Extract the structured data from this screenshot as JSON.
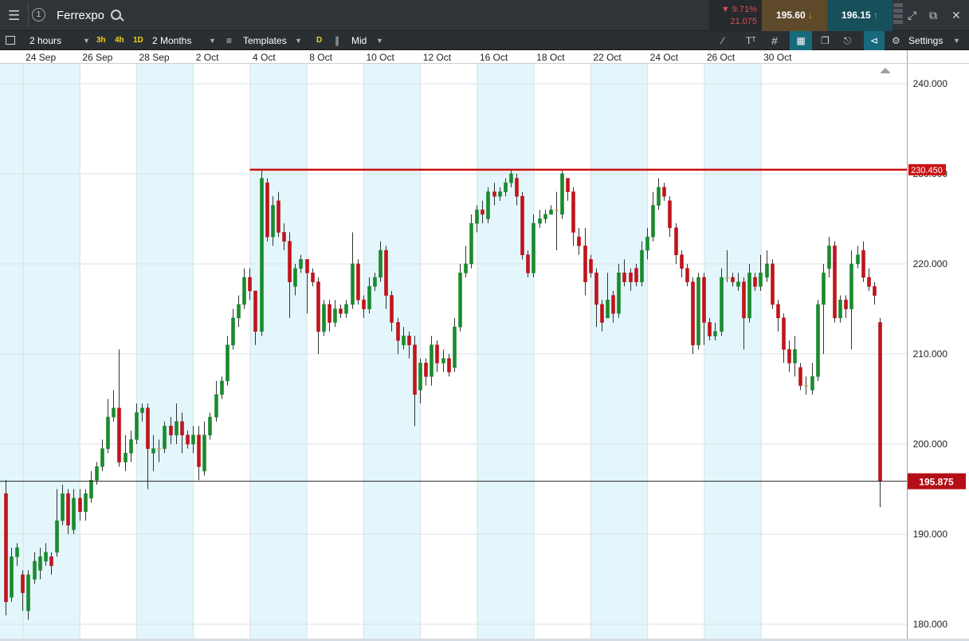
{
  "window": {
    "instrument": "Ferrexpo",
    "badge": "1",
    "change_pct": "▼ 9.71%",
    "change_abs": "21.075",
    "sell_price": "195.60",
    "buy_price": "196.15"
  },
  "toolbar": {
    "interval": "2 hours",
    "quick_intervals": [
      "3h",
      "4h",
      "1D"
    ],
    "range": "2 Months",
    "templates": "Templates",
    "d_badge": "D",
    "price_type": "Mid",
    "settings": "Settings"
  },
  "colors": {
    "up": "#1a8a2e",
    "down": "#c0141c",
    "neutral": "#c8a24a",
    "resistance": "#cc1111",
    "band": "#e2f6fb"
  },
  "chart_data": {
    "type": "candlestick",
    "x_tick_labels": [
      "24 Sep",
      "26 Sep",
      "28 Sep",
      "2 Oct",
      "4 Oct",
      "8 Oct",
      "10 Oct",
      "12 Oct",
      "16 Oct",
      "18 Oct",
      "22 Oct",
      "24 Oct",
      "26 Oct",
      "30 Oct"
    ],
    "y_tick_labels": [
      "240.000",
      "230.000",
      "220.000",
      "210.000",
      "200.000",
      "190.000",
      "180.000"
    ],
    "ylim": [
      178.5,
      241.5
    ],
    "resistance_level": 230.45,
    "resistance_label": "230.450",
    "resistance_start_index": 43,
    "current_price": 195.875,
    "current_label": "195.875",
    "candles": [
      [
        194.5,
        182.5,
        196.0,
        181.0
      ],
      [
        183.0,
        187.5,
        188.5,
        182.5
      ],
      [
        187.5,
        188.5,
        189.0,
        186.5
      ],
      [
        185.5,
        183.5,
        186.0,
        181.5
      ],
      [
        181.5,
        185.5,
        186.0,
        180.5
      ],
      [
        185.0,
        187.0,
        188.0,
        184.5
      ],
      [
        186.0,
        187.5,
        188.5,
        185.0
      ],
      [
        187.0,
        188.0,
        189.0,
        186.5
      ],
      [
        187.5,
        186.5,
        188.0,
        185.5
      ],
      [
        188.0,
        191.5,
        195.0,
        187.5
      ],
      [
        191.5,
        194.5,
        195.5,
        191.0
      ],
      [
        194.5,
        191.0,
        195.0,
        190.0
      ],
      [
        190.5,
        194.0,
        195.0,
        190.0
      ],
      [
        194.0,
        192.5,
        195.0,
        191.5
      ],
      [
        192.5,
        194.5,
        195.0,
        191.5
      ],
      [
        194.0,
        196.0,
        197.0,
        193.5
      ],
      [
        196.0,
        197.5,
        198.0,
        195.5
      ],
      [
        197.5,
        199.5,
        200.5,
        197.0
      ],
      [
        199.5,
        203.0,
        205.0,
        199.0
      ],
      [
        203.0,
        204.0,
        206.0,
        202.5
      ],
      [
        204.0,
        198.0,
        210.5,
        197.5
      ],
      [
        198.0,
        199.0,
        201.0,
        197.0
      ],
      [
        199.0,
        200.5,
        201.5,
        198.0
      ],
      [
        200.5,
        203.5,
        204.5,
        200.0
      ],
      [
        203.5,
        204.0,
        204.5,
        202.5
      ],
      [
        204.0,
        199.5,
        204.5,
        195.0
      ],
      [
        199.0,
        199.5,
        201.0,
        197.0
      ],
      [
        199.5,
        199.5,
        200.5,
        198.0
      ],
      [
        199.5,
        202.0,
        202.5,
        199.0
      ],
      [
        202.0,
        201.0,
        203.0,
        200.0
      ],
      [
        201.0,
        202.5,
        204.5,
        200.0
      ],
      [
        202.5,
        201.0,
        203.5,
        199.0
      ],
      [
        201.0,
        200.0,
        201.5,
        199.5
      ],
      [
        200.0,
        201.0,
        202.0,
        199.0
      ],
      [
        201.0,
        197.5,
        202.0,
        196.0
      ],
      [
        197.0,
        201.0,
        202.5,
        196.5
      ],
      [
        201.0,
        203.0,
        203.5,
        200.5
      ],
      [
        203.0,
        205.5,
        207.0,
        202.5
      ],
      [
        205.5,
        207.0,
        207.5,
        205.0
      ],
      [
        207.0,
        211.0,
        212.0,
        206.5
      ],
      [
        211.0,
        214.0,
        215.0,
        210.5
      ],
      [
        214.0,
        215.5,
        216.5,
        213.0
      ],
      [
        215.5,
        218.5,
        219.5,
        215.0
      ],
      [
        218.5,
        217.0,
        219.5,
        216.0
      ],
      [
        217.0,
        212.5,
        213.5,
        211.0
      ],
      [
        212.5,
        229.5,
        230.5,
        212.0
      ],
      [
        229.0,
        223.0,
        229.5,
        222.5
      ],
      [
        223.0,
        226.5,
        227.5,
        222.0
      ],
      [
        227.0,
        223.5,
        228.0,
        223.0
      ],
      [
        223.5,
        222.5,
        224.5,
        221.5
      ],
      [
        222.5,
        218.0,
        223.5,
        214.0
      ],
      [
        217.5,
        219.5,
        220.0,
        216.5
      ],
      [
        219.5,
        220.5,
        221.0,
        219.0
      ],
      [
        220.5,
        219.0,
        220.5,
        214.5
      ],
      [
        219.0,
        218.0,
        219.5,
        217.5
      ],
      [
        218.0,
        212.5,
        218.5,
        210.0
      ],
      [
        212.5,
        215.5,
        216.0,
        212.0
      ],
      [
        215.5,
        213.5,
        216.0,
        212.5
      ],
      [
        213.5,
        215.0,
        216.0,
        213.0
      ],
      [
        215.0,
        214.5,
        215.5,
        214.0
      ],
      [
        214.5,
        215.5,
        216.0,
        214.0
      ],
      [
        215.5,
        220.0,
        223.5,
        215.0
      ],
      [
        220.0,
        216.0,
        220.5,
        215.5
      ],
      [
        216.0,
        215.0,
        216.5,
        214.0
      ],
      [
        215.0,
        217.5,
        218.5,
        214.5
      ],
      [
        217.5,
        218.5,
        219.0,
        217.0
      ],
      [
        218.5,
        221.5,
        222.5,
        218.0
      ],
      [
        221.5,
        216.5,
        222.0,
        215.0
      ],
      [
        216.5,
        213.5,
        217.0,
        212.5
      ],
      [
        213.5,
        211.5,
        214.0,
        210.0
      ],
      [
        211.0,
        212.0,
        213.0,
        210.5
      ],
      [
        212.0,
        211.0,
        212.5,
        209.5
      ],
      [
        211.0,
        205.5,
        212.0,
        202.0
      ],
      [
        206.0,
        209.0,
        209.5,
        204.5
      ],
      [
        209.0,
        207.5,
        209.5,
        206.5
      ],
      [
        207.5,
        211.0,
        212.0,
        206.5
      ],
      [
        211.0,
        209.0,
        211.5,
        208.0
      ],
      [
        209.0,
        209.5,
        210.5,
        208.0
      ],
      [
        209.5,
        208.0,
        210.0,
        207.5
      ],
      [
        208.5,
        213.0,
        214.0,
        208.0
      ],
      [
        213.0,
        219.0,
        220.0,
        212.5
      ],
      [
        219.0,
        220.0,
        222.0,
        218.5
      ],
      [
        220.0,
        224.5,
        225.5,
        219.5
      ],
      [
        224.5,
        226.0,
        226.5,
        223.5
      ],
      [
        226.0,
        225.5,
        227.0,
        224.5
      ],
      [
        225.0,
        228.0,
        228.5,
        224.5
      ],
      [
        228.0,
        227.5,
        229.0,
        226.5
      ],
      [
        227.5,
        228.0,
        228.5,
        227.0
      ],
      [
        228.0,
        229.0,
        229.5,
        227.5
      ],
      [
        229.0,
        230.0,
        230.5,
        228.5
      ],
      [
        229.5,
        227.5,
        230.0,
        226.5
      ],
      [
        227.5,
        221.0,
        228.0,
        220.5
      ],
      [
        221.0,
        219.0,
        221.5,
        218.5
      ],
      [
        219.0,
        224.5,
        225.5,
        218.5
      ],
      [
        224.5,
        225.0,
        226.0,
        224.0
      ],
      [
        225.0,
        225.5,
        226.0,
        224.5
      ],
      [
        225.5,
        226.0,
        226.5,
        225.5
      ],
      [
        226.0,
        226.0,
        228.0,
        221.5
      ],
      [
        225.5,
        230.0,
        230.5,
        225.0
      ],
      [
        229.5,
        228.0,
        229.0,
        227.0
      ],
      [
        228.0,
        223.5,
        228.5,
        222.0
      ],
      [
        223.0,
        222.0,
        224.0,
        221.0
      ],
      [
        222.0,
        218.0,
        224.0,
        216.5
      ],
      [
        220.5,
        219.0,
        221.0,
        218.5
      ],
      [
        219.0,
        215.5,
        219.5,
        213.0
      ],
      [
        215.5,
        213.5,
        216.0,
        212.5
      ],
      [
        214.0,
        216.0,
        219.0,
        215.0
      ],
      [
        216.5,
        214.5,
        217.0,
        213.5
      ],
      [
        214.5,
        219.0,
        220.0,
        214.0
      ],
      [
        219.0,
        218.0,
        220.5,
        217.5
      ],
      [
        219.0,
        218.0,
        219.5,
        217.0
      ],
      [
        219.5,
        218.0,
        220.0,
        217.5
      ],
      [
        218.0,
        221.5,
        222.5,
        217.5
      ],
      [
        221.5,
        223.0,
        224.0,
        220.5
      ],
      [
        223.0,
        226.5,
        228.0,
        222.5
      ],
      [
        226.5,
        228.5,
        229.5,
        226.0
      ],
      [
        228.5,
        227.5,
        229.0,
        227.0
      ],
      [
        227.0,
        224.0,
        227.5,
        223.0
      ],
      [
        224.0,
        221.0,
        224.5,
        220.0
      ],
      [
        221.0,
        219.5,
        221.5,
        218.5
      ],
      [
        219.5,
        218.0,
        220.0,
        217.5
      ],
      [
        218.0,
        211.0,
        218.5,
        210.0
      ],
      [
        211.0,
        218.5,
        219.0,
        210.5
      ],
      [
        218.5,
        213.5,
        219.0,
        211.0
      ],
      [
        213.5,
        212.0,
        214.0,
        211.5
      ],
      [
        212.0,
        212.5,
        213.5,
        211.5
      ],
      [
        212.5,
        218.5,
        219.5,
        212.0
      ],
      [
        218.5,
        218.5,
        221.5,
        218.0
      ],
      [
        218.5,
        218.0,
        219.0,
        217.5
      ],
      [
        217.5,
        218.0,
        219.0,
        217.0
      ],
      [
        218.0,
        214.0,
        218.5,
        210.5
      ],
      [
        214.0,
        219.0,
        220.0,
        213.5
      ],
      [
        218.5,
        217.5,
        219.0,
        217.0
      ],
      [
        217.5,
        219.0,
        221.0,
        217.0
      ],
      [
        218.5,
        220.0,
        221.5,
        218.0
      ],
      [
        220.0,
        215.5,
        220.5,
        215.0
      ],
      [
        215.5,
        214.0,
        216.0,
        212.5
      ],
      [
        214.0,
        210.5,
        214.5,
        209.0
      ],
      [
        210.5,
        209.0,
        211.5,
        208.0
      ],
      [
        209.0,
        210.5,
        212.0,
        207.5
      ],
      [
        208.5,
        206.5,
        209.0,
        206.0
      ],
      [
        206.5,
        206.5,
        207.5,
        205.5
      ],
      [
        206.0,
        207.5,
        209.0,
        205.5
      ],
      [
        207.5,
        215.5,
        216.0,
        207.0
      ],
      [
        215.5,
        219.0,
        220.0,
        210.0
      ],
      [
        219.5,
        222.0,
        223.0,
        218.5
      ],
      [
        222.0,
        214.0,
        222.5,
        213.5
      ],
      [
        214.0,
        216.0,
        216.5,
        213.5
      ],
      [
        216.0,
        215.0,
        216.5,
        214.0
      ],
      [
        215.0,
        220.0,
        221.5,
        210.5
      ],
      [
        220.0,
        221.0,
        222.0,
        219.5
      ],
      [
        221.5,
        218.5,
        222.5,
        218.0
      ],
      [
        218.5,
        217.5,
        219.5,
        217.0
      ],
      [
        217.5,
        216.5,
        218.0,
        215.5
      ],
      [
        213.5,
        195.875,
        214.0,
        193.0
      ]
    ]
  }
}
